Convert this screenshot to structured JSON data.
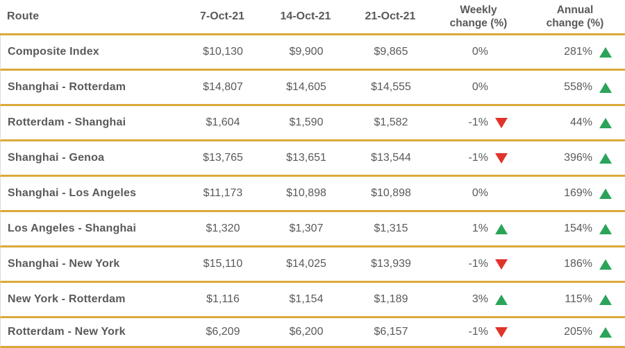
{
  "colors": {
    "divider_gold": "#DBA838",
    "up_green": "#2BA45A",
    "down_red": "#E0332B",
    "text_gray": "#58595B"
  },
  "icons": {
    "up": "up-triangle-icon",
    "down": "down-triangle-icon"
  },
  "chart_data": {
    "type": "table",
    "columns": [
      "Route",
      "7-Oct-21",
      "14-Oct-21",
      "21-Oct-21",
      "Weekly change (%)",
      "Annual change (%)"
    ],
    "rows": [
      {
        "route": "Composite Index",
        "d1": "$10,130",
        "d2": "$9,900",
        "d3": "$9,865",
        "weekly": "0%",
        "weekly_dir": "none",
        "annual": "281%",
        "annual_dir": "up"
      },
      {
        "route": "Shanghai - Rotterdam",
        "d1": "$14,807",
        "d2": "$14,605",
        "d3": "$14,555",
        "weekly": "0%",
        "weekly_dir": "none",
        "annual": "558%",
        "annual_dir": "up"
      },
      {
        "route": "Rotterdam - Shanghai",
        "d1": "$1,604",
        "d2": "$1,590",
        "d3": "$1,582",
        "weekly": "-1%",
        "weekly_dir": "down",
        "annual": "44%",
        "annual_dir": "up"
      },
      {
        "route": "Shanghai - Genoa",
        "d1": "$13,765",
        "d2": "$13,651",
        "d3": "$13,544",
        "weekly": "-1%",
        "weekly_dir": "down",
        "annual": "396%",
        "annual_dir": "up"
      },
      {
        "route": "Shanghai - Los Angeles",
        "d1": "$11,173",
        "d2": "$10,898",
        "d3": "$10,898",
        "weekly": "0%",
        "weekly_dir": "none",
        "annual": "169%",
        "annual_dir": "up"
      },
      {
        "route": "Los Angeles - Shanghai",
        "d1": "$1,320",
        "d2": "$1,307",
        "d3": "$1,315",
        "weekly": "1%",
        "weekly_dir": "up",
        "annual": "154%",
        "annual_dir": "up"
      },
      {
        "route": "Shanghai - New York",
        "d1": "$15,110",
        "d2": "$14,025",
        "d3": "$13,939",
        "weekly": "-1%",
        "weekly_dir": "down",
        "annual": "186%",
        "annual_dir": "up"
      },
      {
        "route": "New York - Rotterdam",
        "d1": "$1,116",
        "d2": "$1,154",
        "d3": "$1,189",
        "weekly": "3%",
        "weekly_dir": "up",
        "annual": "115%",
        "annual_dir": "up"
      },
      {
        "route": "Rotterdam - New York",
        "d1": "$6,209",
        "d2": "$6,200",
        "d3": "$6,157",
        "weekly": "-1%",
        "weekly_dir": "down",
        "annual": "205%",
        "annual_dir": "up"
      }
    ]
  }
}
